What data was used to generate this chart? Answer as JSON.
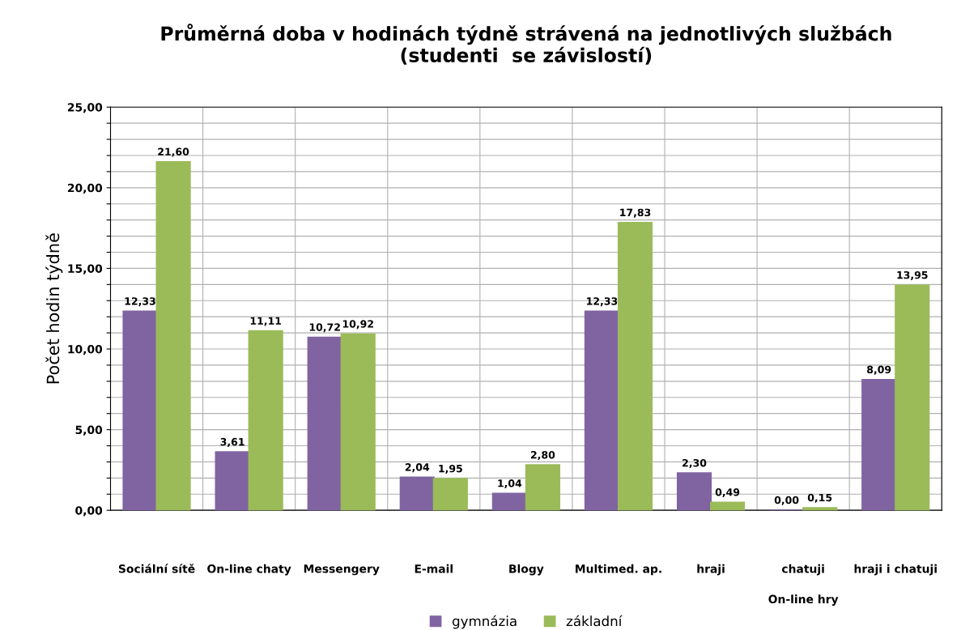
{
  "chart_data": {
    "type": "bar",
    "title": "Průměrná doba v hodinách týdně strávená na jednotlivých službách\n(studenti  se závislostí)",
    "ylabel": "Počet hodin týdně",
    "categories": [
      "Sociální sítě",
      "On-line chaty",
      "Messengery",
      "E-mail",
      "Blogy",
      "Multimed. ap.",
      "hraji",
      "chatuji",
      "hraji i chatuji"
    ],
    "series": [
      {
        "name": "gymnázia",
        "color": "#8064a2",
        "values": [
          12.33,
          3.61,
          10.72,
          2.04,
          1.04,
          12.33,
          2.3,
          0.0,
          8.09
        ],
        "value_labels": [
          "12,33",
          "3,61",
          "10,72",
          "2,04",
          "1,04",
          "12,33",
          "2,30",
          "0,00",
          "8,09"
        ]
      },
      {
        "name": "základní",
        "color": "#9bbb59",
        "values": [
          21.6,
          11.11,
          10.92,
          1.95,
          2.8,
          17.83,
          0.49,
          0.15,
          13.95
        ],
        "value_labels": [
          "21,60",
          "11,11",
          "10,92",
          "1,95",
          "2,80",
          "17,83",
          "0,49",
          "0,15",
          "13,95"
        ]
      }
    ],
    "ylim": [
      0,
      25
    ],
    "yticks": [
      {
        "value": 0,
        "label": "0,00"
      },
      {
        "value": 1,
        "label": null
      },
      {
        "value": 2,
        "label": null
      },
      {
        "value": 3,
        "label": null
      },
      {
        "value": 4,
        "label": null
      },
      {
        "value": 5,
        "label": "5,00"
      },
      {
        "value": 6,
        "label": null
      },
      {
        "value": 7,
        "label": null
      },
      {
        "value": 8,
        "label": null
      },
      {
        "value": 9,
        "label": null
      },
      {
        "value": 10,
        "label": "10,00"
      },
      {
        "value": 11,
        "label": null
      },
      {
        "value": 12,
        "label": null
      },
      {
        "value": 13,
        "label": null
      },
      {
        "value": 14,
        "label": null
      },
      {
        "value": 15,
        "label": "15,00"
      },
      {
        "value": 16,
        "label": null
      },
      {
        "value": 17,
        "label": null
      },
      {
        "value": 18,
        "label": null
      },
      {
        "value": 19,
        "label": null
      },
      {
        "value": 20,
        "label": "20,00"
      },
      {
        "value": 21,
        "label": null
      },
      {
        "value": 22,
        "label": null
      },
      {
        "value": 23,
        "label": null
      },
      {
        "value": 24,
        "label": null
      },
      {
        "value": 25,
        "label": "25,00"
      }
    ],
    "annotations": [
      "On-line hry"
    ],
    "grid": true,
    "legend": "bottom"
  }
}
